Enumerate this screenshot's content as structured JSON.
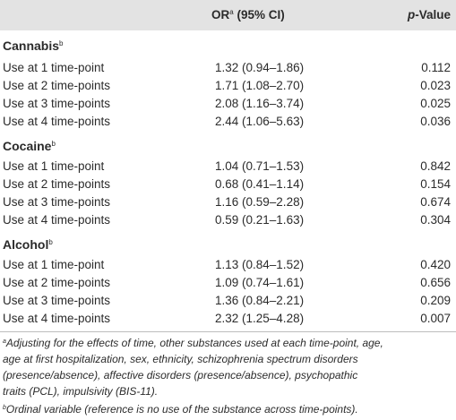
{
  "header": {
    "or_label": "OR",
    "or_sup": "a",
    "or_suffix": " (95% CI)",
    "pvalue_p": "p",
    "pvalue_suffix": "-Value"
  },
  "sections": [
    {
      "title": "Cannabis",
      "sup": "b",
      "rows": [
        {
          "label": "Use at 1 time-point",
          "or": "1.32 (0.94–1.86)",
          "p": "0.112"
        },
        {
          "label": "Use at 2 time-points",
          "or": "1.71 (1.08–2.70)",
          "p": "0.023"
        },
        {
          "label": "Use at 3 time-points",
          "or": "2.08 (1.16–3.74)",
          "p": "0.025"
        },
        {
          "label": "Use at 4 time-points",
          "or": "2.44 (1.06–5.63)",
          "p": "0.036"
        }
      ]
    },
    {
      "title": "Cocaine",
      "sup": "b",
      "rows": [
        {
          "label": "Use at 1 time-point",
          "or": "1.04 (0.71–1.53)",
          "p": "0.842"
        },
        {
          "label": "Use at 2 time-points",
          "or": "0.68 (0.41–1.14)",
          "p": "0.154"
        },
        {
          "label": "Use at 3 time-points",
          "or": "1.16 (0.59–2.28)",
          "p": "0.674"
        },
        {
          "label": "Use at 4 time-points",
          "or": "0.59 (0.21–1.63)",
          "p": "0.304"
        }
      ]
    },
    {
      "title": "Alcohol",
      "sup": "b",
      "rows": [
        {
          "label": "Use at 1 time-point",
          "or": "1.13 (0.84–1.52)",
          "p": "0.420"
        },
        {
          "label": "Use at 2 time-points",
          "or": "1.09 (0.74–1.61)",
          "p": "0.656"
        },
        {
          "label": "Use at 3 time-points",
          "or": "1.36 (0.84–2.21)",
          "p": "0.209"
        },
        {
          "label": "Use at 4 time-points",
          "or": "2.32 (1.25–4.28)",
          "p": "0.007"
        }
      ]
    }
  ],
  "footnotes": {
    "a_sup": "a",
    "a_lines": [
      "Adjusting for the effects of time, other substances used at each time-point, age,",
      "age at first hospitalization, sex, ethnicity, schizophrenia spectrum disorders",
      "(presence/absence), affective disorders (presence/absence), psychopathic",
      "traits (PCL), impulsivity (BIS-11)."
    ],
    "b_sup": "b",
    "b_text": "Ordinal variable (reference is no use of the substance across time-points)."
  }
}
